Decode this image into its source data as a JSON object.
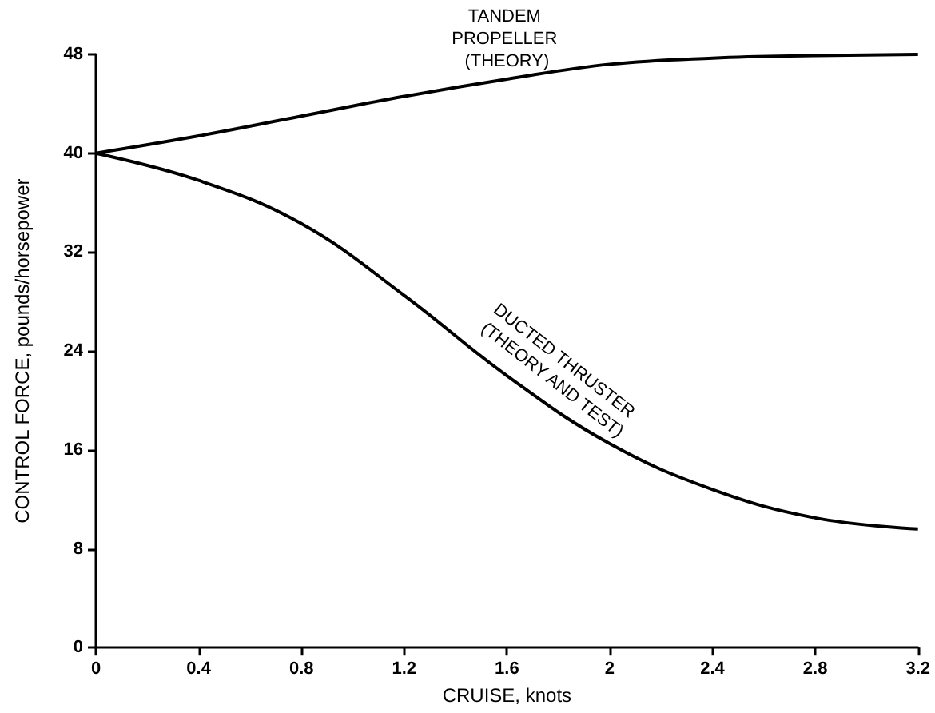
{
  "chart_data": {
    "type": "line",
    "xlabel": "CRUISE, knots",
    "ylabel": "CONTROL FORCE, pounds/horsepower",
    "x": [
      0,
      0.4,
      0.8,
      1.2,
      1.6,
      2.0,
      2.4,
      2.8,
      3.2
    ],
    "series": [
      {
        "name": "TANDEM PROPELLER (THEORY)",
        "color": "#000000",
        "values": [
          40,
          41.4,
          43,
          44.6,
          46,
          47.2,
          47.7,
          47.9,
          48
        ]
      },
      {
        "name": "DUCTED THRUSTER (THEORY AND TEST)",
        "color": "#000000",
        "values": [
          40,
          37.8,
          34.3,
          28.5,
          22,
          16.5,
          12.8,
          10.5,
          9.6
        ]
      }
    ],
    "xlim": [
      0,
      3.2
    ],
    "xticks": [
      0,
      0.4,
      0.8,
      1.2,
      1.6,
      2,
      2.4,
      2.8,
      3.2
    ],
    "ylim": [
      0,
      48
    ],
    "yticks": [
      0,
      8,
      16,
      24,
      32,
      40,
      48
    ],
    "grid": false,
    "legend": false,
    "marker": "none",
    "line_style": "solid"
  }
}
